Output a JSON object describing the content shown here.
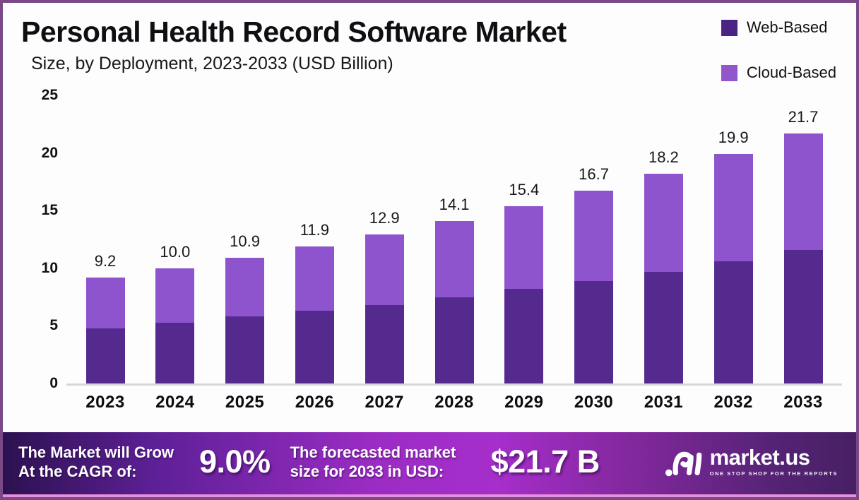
{
  "title": "Personal Health Record Software Market",
  "subtitle": "Size, by Deployment, 2023-2033 (USD Billion)",
  "legend": [
    {
      "label": "Web-Based",
      "color": "#4b2385"
    },
    {
      "label": "Cloud-Based",
      "color": "#9257cd"
    }
  ],
  "chart_data": {
    "type": "bar",
    "stacked": true,
    "title": "Personal Health Record Software Market Size, by Deployment, 2023-2033 (USD Billion)",
    "categories": [
      "2023",
      "2024",
      "2025",
      "2026",
      "2027",
      "2028",
      "2029",
      "2030",
      "2031",
      "2032",
      "2033"
    ],
    "series": [
      {
        "name": "Web-Based",
        "color": "#552a8e",
        "values": [
          4.8,
          5.3,
          5.8,
          6.3,
          6.8,
          7.5,
          8.2,
          8.9,
          9.7,
          10.6,
          11.6
        ]
      },
      {
        "name": "Cloud-Based",
        "color": "#8d54ce",
        "values": [
          4.4,
          4.7,
          5.1,
          5.6,
          6.1,
          6.6,
          7.2,
          7.8,
          8.5,
          9.3,
          10.1
        ]
      }
    ],
    "totals": [
      9.2,
      10.0,
      10.9,
      11.9,
      12.9,
      14.1,
      15.4,
      16.7,
      18.2,
      19.9,
      21.7
    ],
    "total_labels": [
      "9.2",
      "10.0",
      "10.9",
      "11.9",
      "12.9",
      "14.1",
      "15.4",
      "16.7",
      "18.2",
      "19.9",
      "21.7"
    ],
    "ylim": [
      0,
      25
    ],
    "yticks": [
      0,
      5,
      10,
      15,
      20,
      25
    ],
    "grid": false,
    "legend_position": "top-right"
  },
  "footer": {
    "cagr_label_line1": "The Market will Grow",
    "cagr_label_line2": "At the CAGR of:",
    "cagr_value": "9.0%",
    "forecast_label_line1": "The forecasted market",
    "forecast_label_line2": "size for 2033 in USD:",
    "forecast_value": "$21.7 B",
    "brand_name": "market.us",
    "brand_tagline": "ONE STOP SHOP FOR THE REPORTS"
  }
}
